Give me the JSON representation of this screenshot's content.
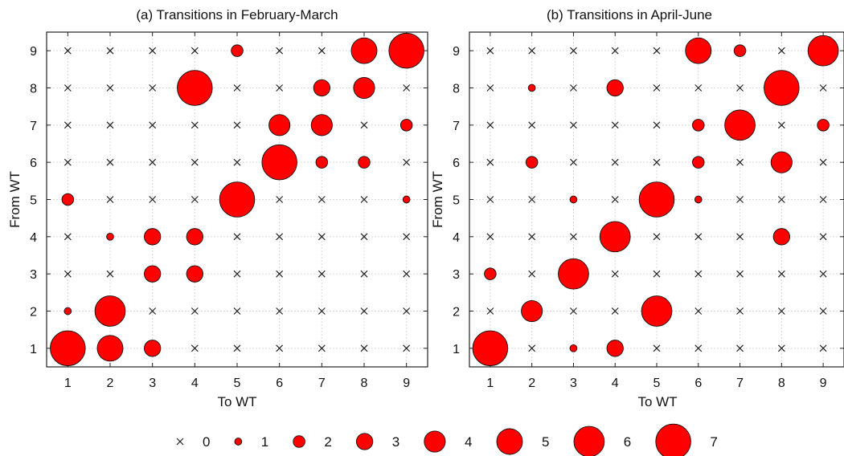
{
  "chart_data": [
    {
      "type": "scatter",
      "title": "(a) Transitions in February-March",
      "xlabel": "To WT",
      "ylabel": "From WT",
      "x_ticks": [
        "1",
        "2",
        "3",
        "4",
        "5",
        "6",
        "7",
        "8",
        "9"
      ],
      "y_ticks": [
        "1",
        "2",
        "3",
        "4",
        "5",
        "6",
        "7",
        "8",
        "9"
      ],
      "xlim": [
        0.5,
        9.5
      ],
      "ylim": [
        0.5,
        9.5
      ],
      "grid": true,
      "marker_color": "#ff0000",
      "counts_by_from_wt": [
        [
          7,
          5,
          3,
          0,
          0,
          0,
          0,
          0,
          0
        ],
        [
          1,
          6,
          0,
          0,
          0,
          0,
          0,
          0,
          0
        ],
        [
          0,
          0,
          3,
          3,
          0,
          0,
          0,
          0,
          0
        ],
        [
          0,
          1,
          3,
          3,
          0,
          0,
          0,
          0,
          0
        ],
        [
          2,
          0,
          0,
          0,
          7,
          0,
          0,
          0,
          1
        ],
        [
          0,
          0,
          0,
          0,
          0,
          7,
          2,
          2,
          0
        ],
        [
          0,
          0,
          0,
          0,
          0,
          4,
          4,
          0,
          2
        ],
        [
          0,
          0,
          0,
          7,
          0,
          0,
          3,
          4,
          0
        ],
        [
          0,
          0,
          0,
          0,
          2,
          0,
          0,
          5,
          7
        ]
      ]
    },
    {
      "type": "scatter",
      "title": "(b) Transitions in April-June",
      "xlabel": "To WT",
      "ylabel": "From WT",
      "x_ticks": [
        "1",
        "2",
        "3",
        "4",
        "5",
        "6",
        "7",
        "8",
        "9"
      ],
      "y_ticks": [
        "1",
        "2",
        "3",
        "4",
        "5",
        "6",
        "7",
        "8",
        "9"
      ],
      "xlim": [
        0.5,
        9.5
      ],
      "ylim": [
        0.5,
        9.5
      ],
      "grid": true,
      "marker_color": "#ff0000",
      "counts_by_from_wt": [
        [
          7,
          0,
          1,
          3,
          0,
          0,
          0,
          0,
          0
        ],
        [
          0,
          4,
          0,
          0,
          6,
          0,
          0,
          0,
          0
        ],
        [
          2,
          0,
          6,
          0,
          0,
          0,
          0,
          0,
          0
        ],
        [
          0,
          0,
          0,
          6,
          0,
          0,
          0,
          3,
          0
        ],
        [
          0,
          0,
          1,
          0,
          7,
          1,
          0,
          0,
          0
        ],
        [
          0,
          2,
          0,
          0,
          0,
          2,
          0,
          4,
          0
        ],
        [
          0,
          0,
          0,
          0,
          0,
          2,
          6,
          0,
          2
        ],
        [
          0,
          1,
          0,
          3,
          0,
          0,
          0,
          7,
          0
        ],
        [
          0,
          0,
          0,
          0,
          0,
          5,
          2,
          0,
          6
        ]
      ]
    }
  ],
  "legend": {
    "entries": [
      {
        "value": 0,
        "label": "0"
      },
      {
        "value": 1,
        "label": "1"
      },
      {
        "value": 2,
        "label": "2"
      },
      {
        "value": 3,
        "label": "3"
      },
      {
        "value": 4,
        "label": "4"
      },
      {
        "value": 5,
        "label": "5"
      },
      {
        "value": 6,
        "label": "6"
      },
      {
        "value": 7,
        "label": "7"
      }
    ]
  }
}
